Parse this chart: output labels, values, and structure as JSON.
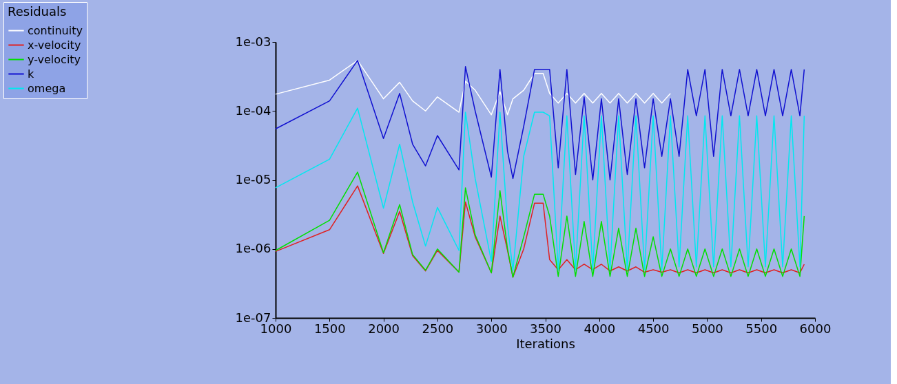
{
  "chart_data": {
    "type": "line",
    "xlabel": "Iterations",
    "legend_title": "Residuals",
    "legend": "top left",
    "log": "y",
    "grid": false,
    "marker": "none",
    "line_style": "solid",
    "xlim": [
      1000,
      6000
    ],
    "xticks": [
      1000,
      1500,
      2000,
      2500,
      3000,
      3500,
      4000,
      4500,
      5000,
      5500,
      6000
    ],
    "ylim": [
      1e-07,
      0.001
    ],
    "yticks": [
      {
        "value": 1e-07,
        "label": "1e-07"
      },
      {
        "value": 1e-06,
        "label": "1e-06"
      },
      {
        "value": 1e-05,
        "label": "1e-05"
      },
      {
        "value": 0.0001,
        "label": "1e-04"
      },
      {
        "value": 0.001,
        "label": "1e-03"
      }
    ],
    "x": [
      1000,
      1500,
      1760,
      2000,
      2150,
      2270,
      2390,
      2500,
      2700,
      2760,
      2850,
      3000,
      3080,
      3150,
      3200,
      3300,
      3400,
      3480,
      3540,
      3620,
      3700,
      3780,
      3860,
      3940,
      4020,
      4100,
      4180,
      4260,
      4340,
      4420,
      4500,
      4580,
      4660,
      4740,
      4820,
      4900,
      4980,
      5060,
      5140,
      5220,
      5300,
      5380,
      5460,
      5540,
      5620,
      5700,
      5780,
      5860,
      5900
    ],
    "series": [
      {
        "name": "continuity",
        "color": "#ffffff",
        "values": [
          0.000175,
          0.00028,
          0.00054,
          0.00015,
          0.00026,
          0.00014,
          0.0001,
          0.00016,
          9.6e-05,
          0.00027,
          0.0002,
          8.8e-05,
          0.00019,
          8.8e-05,
          0.00015,
          0.0002,
          0.00035,
          0.00035,
          0.00018,
          0.00013,
          0.00018,
          0.00013,
          0.00018,
          0.00013,
          0.00018,
          0.00013,
          0.00018,
          0.00013,
          0.00018,
          0.00013,
          0.00018,
          0.00013,
          0.00018,
          null,
          null,
          null,
          null,
          null,
          null,
          null,
          null,
          null,
          null,
          null,
          null,
          null,
          null,
          null,
          null
        ]
      },
      {
        "name": "x-velocity",
        "color": "#e02020",
        "values": [
          9.2e-07,
          1.9e-06,
          8.2e-06,
          8.6e-07,
          3.5e-06,
          8e-07,
          4.8e-07,
          9.5e-07,
          4.6e-07,
          4.8e-06,
          1.5e-06,
          4.5e-07,
          3e-06,
          9.5e-07,
          3.9e-07,
          1e-06,
          4.6e-06,
          4.6e-06,
          7e-07,
          5e-07,
          7e-07,
          5e-07,
          6e-07,
          5e-07,
          6e-07,
          4.8e-07,
          5.5e-07,
          4.8e-07,
          5.5e-07,
          4.6e-07,
          5e-07,
          4.6e-07,
          5e-07,
          4.5e-07,
          5e-07,
          4.5e-07,
          5e-07,
          4.5e-07,
          5e-07,
          4.5e-07,
          5e-07,
          4.5e-07,
          5e-07,
          4.5e-07,
          5e-07,
          4.5e-07,
          5e-07,
          4.5e-07,
          6e-07
        ]
      },
      {
        "name": "y-velocity",
        "color": "#00e000",
        "values": [
          9.5e-07,
          2.6e-06,
          1.3e-05,
          8.8e-07,
          4.4e-06,
          8.3e-07,
          4.9e-07,
          1e-06,
          4.6e-07,
          7.7e-06,
          1.6e-06,
          4.5e-07,
          7e-06,
          1e-06,
          3.9e-07,
          1.5e-06,
          6.2e-06,
          6.2e-06,
          3e-06,
          4e-07,
          3e-06,
          4e-07,
          2.5e-06,
          4e-07,
          2.5e-06,
          4e-07,
          2e-06,
          4e-07,
          2e-06,
          4e-07,
          1.5e-06,
          4e-07,
          1e-06,
          4e-07,
          1e-06,
          4e-07,
          1e-06,
          4e-07,
          1e-06,
          4e-07,
          1e-06,
          4e-07,
          1e-06,
          4e-07,
          1e-06,
          4e-07,
          1e-06,
          4e-07,
          3e-06
        ]
      },
      {
        "name": "k",
        "color": "#1010d0",
        "values": [
          5.5e-05,
          0.00014,
          0.00054,
          4e-05,
          0.00018,
          3.3e-05,
          1.6e-05,
          4.4e-05,
          1.4e-05,
          0.00044,
          0.0001,
          1.1e-05,
          0.0004,
          2.6e-05,
          1.05e-05,
          6e-05,
          0.0004,
          0.0004,
          0.0004,
          1.5e-05,
          0.0004,
          1.2e-05,
          0.00016,
          1e-05,
          0.00015,
          1e-05,
          0.00015,
          1.2e-05,
          0.00015,
          1.5e-05,
          0.00015,
          2.2e-05,
          0.00015,
          2.2e-05,
          0.0004,
          8.5e-05,
          0.0004,
          2.2e-05,
          0.0004,
          8.5e-05,
          0.0004,
          8.5e-05,
          0.0004,
          8.5e-05,
          0.0004,
          8.5e-05,
          0.0004,
          8.5e-05,
          0.0004
        ]
      },
      {
        "name": "omega",
        "color": "#00e8f0",
        "values": [
          7.7e-06,
          2e-05,
          0.00011,
          3.9e-06,
          3.3e-05,
          4.8e-06,
          1.1e-06,
          4e-06,
          9.5e-07,
          9.6e-05,
          1.05e-05,
          6.6e-07,
          9.6e-05,
          2.2e-06,
          4.9e-07,
          2.2e-05,
          9.6e-05,
          9.6e-05,
          8.5e-05,
          5e-07,
          8.5e-05,
          5e-07,
          8.5e-05,
          5e-07,
          8.5e-05,
          5e-07,
          8.5e-05,
          5e-07,
          8.5e-05,
          5e-07,
          8.5e-05,
          5e-07,
          8.5e-05,
          5.5e-07,
          8.5e-05,
          5.5e-07,
          8.5e-05,
          5.5e-07,
          8.5e-05,
          5.5e-07,
          8.5e-05,
          5.5e-07,
          8.5e-05,
          5.5e-07,
          8.5e-05,
          5.5e-07,
          8.5e-05,
          5.5e-07,
          8.5e-05
        ]
      }
    ]
  }
}
